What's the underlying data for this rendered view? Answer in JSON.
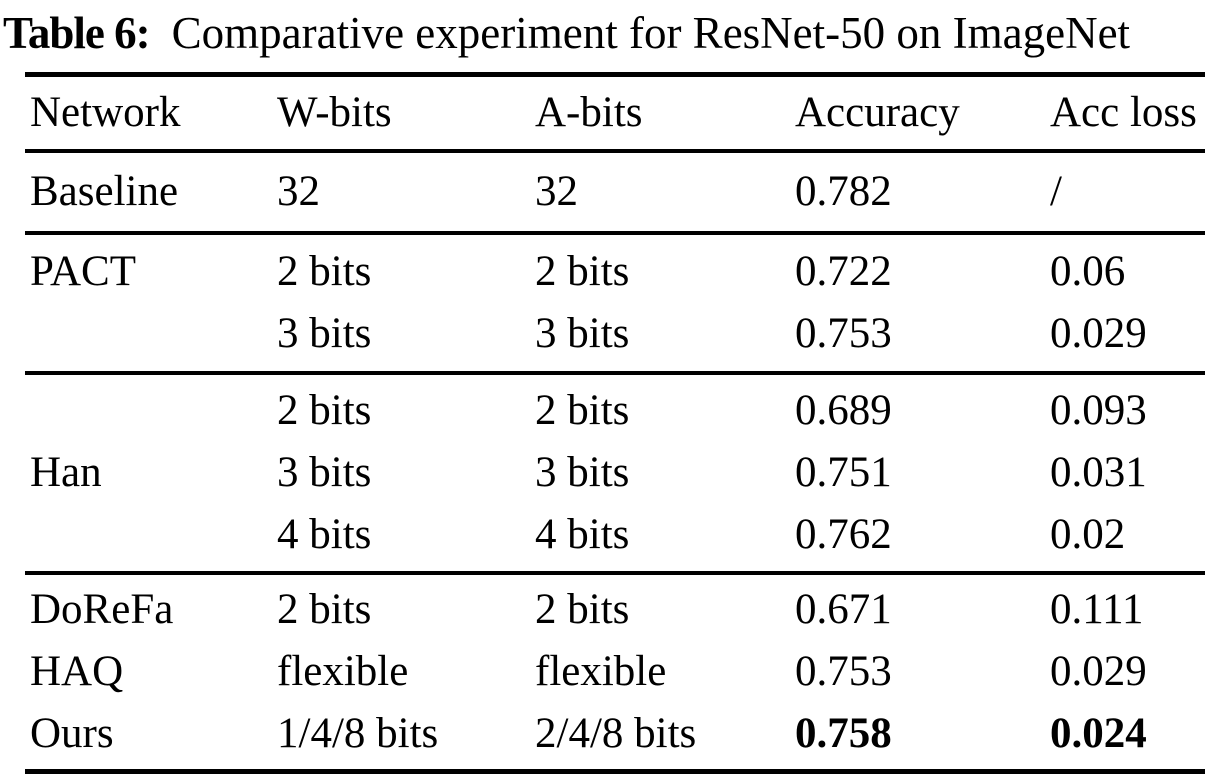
{
  "title": {
    "label": "Table 6:",
    "caption": "Comparative experiment for ResNet-50 on ImageNet"
  },
  "colors": {
    "text": "#000000",
    "background": "#ffffff",
    "rule": "#000000"
  },
  "table": {
    "header": [
      "Network",
      "W-bits",
      "A-bits",
      "Accuracy",
      "Acc loss"
    ],
    "groups": [
      [
        [
          "Baseline",
          "32",
          "32",
          "0.782",
          "/"
        ]
      ],
      [
        [
          "PACT",
          "2 bits",
          "2 bits",
          "0.722",
          "0.06"
        ],
        [
          "",
          "3 bits",
          "3 bits",
          "0.753",
          "0.029"
        ]
      ],
      [
        [
          "",
          "2 bits",
          "2 bits",
          "0.689",
          "0.093"
        ],
        [
          "Han",
          "3 bits",
          "3 bits",
          "0.751",
          "0.031"
        ],
        [
          "",
          "4 bits",
          "4 bits",
          "0.762",
          "0.02"
        ]
      ],
      [
        [
          "DoReFa",
          "2 bits",
          "2 bits",
          "0.671",
          "0.111"
        ],
        [
          "HAQ",
          "flexible",
          "flexible",
          "0.753",
          "0.029"
        ],
        [
          "Ours",
          "1/4/8 bits",
          "2/4/8 bits",
          "0.758",
          "0.024"
        ]
      ]
    ]
  }
}
